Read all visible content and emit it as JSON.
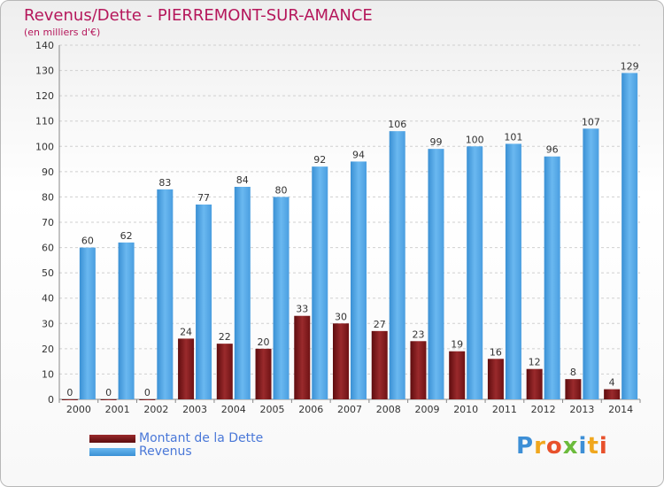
{
  "title": "Revenus/Dette - PIERREMONT-SUR-AMANCE",
  "subtitle": "(en milliers d'€)",
  "logo": [
    "P",
    "r",
    "o",
    "x",
    "i",
    "t",
    "i"
  ],
  "colors": {
    "dette": "#7b1416",
    "revenus": "#4ea6e8",
    "title": "#b5175b"
  },
  "chart_data": {
    "type": "bar",
    "categories": [
      "2000",
      "2001",
      "2002",
      "2003",
      "2004",
      "2005",
      "2006",
      "2007",
      "2008",
      "2009",
      "2010",
      "2011",
      "2012",
      "2013",
      "2014"
    ],
    "series": [
      {
        "name": "Montant de la Dette",
        "values": [
          0,
          0,
          0,
          24,
          22,
          20,
          33,
          30,
          27,
          23,
          19,
          16,
          12,
          8,
          4
        ]
      },
      {
        "name": "Revenus",
        "values": [
          60,
          62,
          83,
          77,
          84,
          80,
          92,
          94,
          106,
          99,
          100,
          101,
          96,
          107,
          129
        ]
      }
    ],
    "yticks": [
      0,
      10,
      20,
      30,
      40,
      50,
      60,
      70,
      80,
      90,
      100,
      110,
      120,
      130,
      140
    ],
    "ylim": [
      0,
      140
    ],
    "legend_position": "bottom-left"
  }
}
